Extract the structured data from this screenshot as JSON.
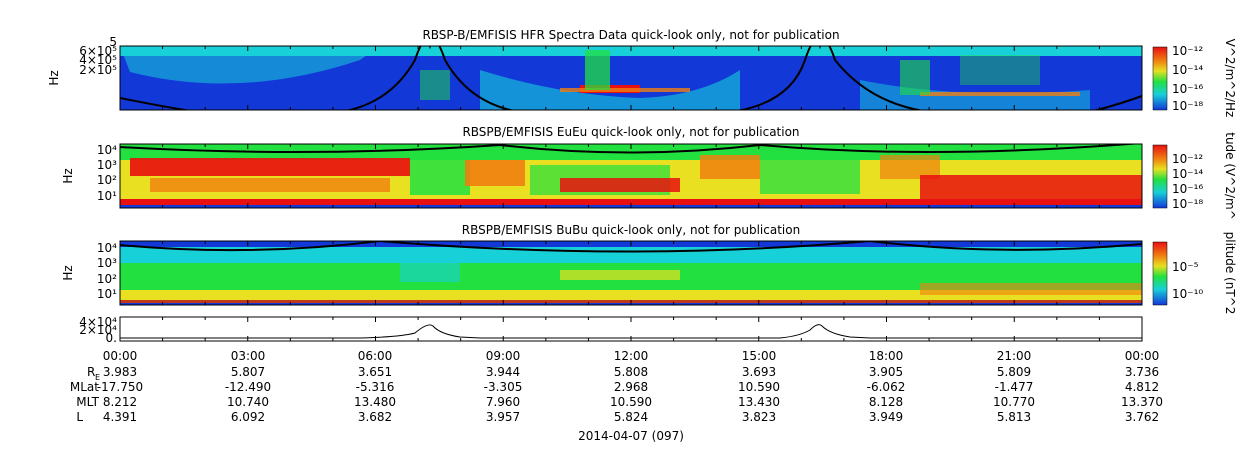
{
  "chart_data": [
    {
      "type": "heatmap",
      "title": "RBSP-B/EMFISIS  HFR Spectra Data quick-look only, not for publication",
      "ylabel": "Hz",
      "y_tick_labels": [
        "2×10⁵",
        "4×10⁵",
        "6×10⁵",
        "5"
      ],
      "colorbar_label": "V^2/m^2/Hz",
      "colorbar_ticks": [
        "10⁻¹²",
        "10⁻¹⁴",
        "10⁻¹⁶",
        "10⁻¹⁸"
      ]
    },
    {
      "type": "heatmap",
      "title": "RBSPB/EMFISIS  EuEu quick-look only, not for publication",
      "ylabel": "Hz",
      "y_tick_labels": [
        "10⁴",
        "10³",
        "10²",
        "10¹"
      ],
      "colorbar_label": "tude (V^2/m^",
      "colorbar_ticks": [
        "10⁻¹²",
        "10⁻¹⁴",
        "10⁻¹⁶",
        "10⁻¹⁸"
      ]
    },
    {
      "type": "heatmap",
      "title": "RBSPB/EMFISIS  BuBu quick-look only, not for publication",
      "ylabel": "Hz",
      "y_tick_labels": [
        "10⁴",
        "10³",
        "10²",
        "10¹"
      ],
      "colorbar_label": "plitude (nT^2",
      "colorbar_ticks": [
        "10⁻⁵",
        "10⁻¹⁰"
      ]
    },
    {
      "type": "line",
      "y_tick_labels": [
        "4×10⁴",
        "2×10⁴",
        "0."
      ],
      "x": [
        "00:00",
        "03:00",
        "06:00",
        "09:00",
        "12:00",
        "15:00",
        "18:00",
        "21:00",
        "00:00"
      ],
      "peaks_at_hours": [
        7.5,
        16.5
      ],
      "xlabel": "2014-04-07 (097)"
    }
  ],
  "ephemeris": {
    "time_labels": [
      "00:00",
      "03:00",
      "06:00",
      "09:00",
      "12:00",
      "15:00",
      "18:00",
      "21:00",
      "00:00"
    ],
    "rows": [
      {
        "label": "R",
        "sub": "E",
        "values": [
          "3.983",
          "5.807",
          "3.651",
          "3.944",
          "5.808",
          "3.693",
          "3.905",
          "5.809",
          "3.736"
        ]
      },
      {
        "label": "MLat",
        "sub": "",
        "values": [
          "-17.750",
          "-12.490",
          "-5.316",
          "-3.305",
          "2.968",
          "10.590",
          "-6.062",
          "-1.477",
          "4.812"
        ]
      },
      {
        "label": "MLT",
        "sub": "",
        "values": [
          "8.212",
          "10.740",
          "13.480",
          "7.960",
          "10.590",
          "13.430",
          "8.128",
          "10.770",
          "13.370"
        ]
      },
      {
        "label": "L",
        "sub": "",
        "values": [
          "4.391",
          "6.092",
          "3.682",
          "3.957",
          "5.824",
          "3.823",
          "3.949",
          "5.813",
          "3.762"
        ]
      }
    ]
  },
  "date_label": "2014-04-07 (097)",
  "colors": {
    "blue": "#1238d8",
    "cyan": "#18d0d8",
    "green": "#22e040",
    "yellow": "#e8e020",
    "orange": "#f08010",
    "red": "#e81010",
    "line": "#000000"
  }
}
